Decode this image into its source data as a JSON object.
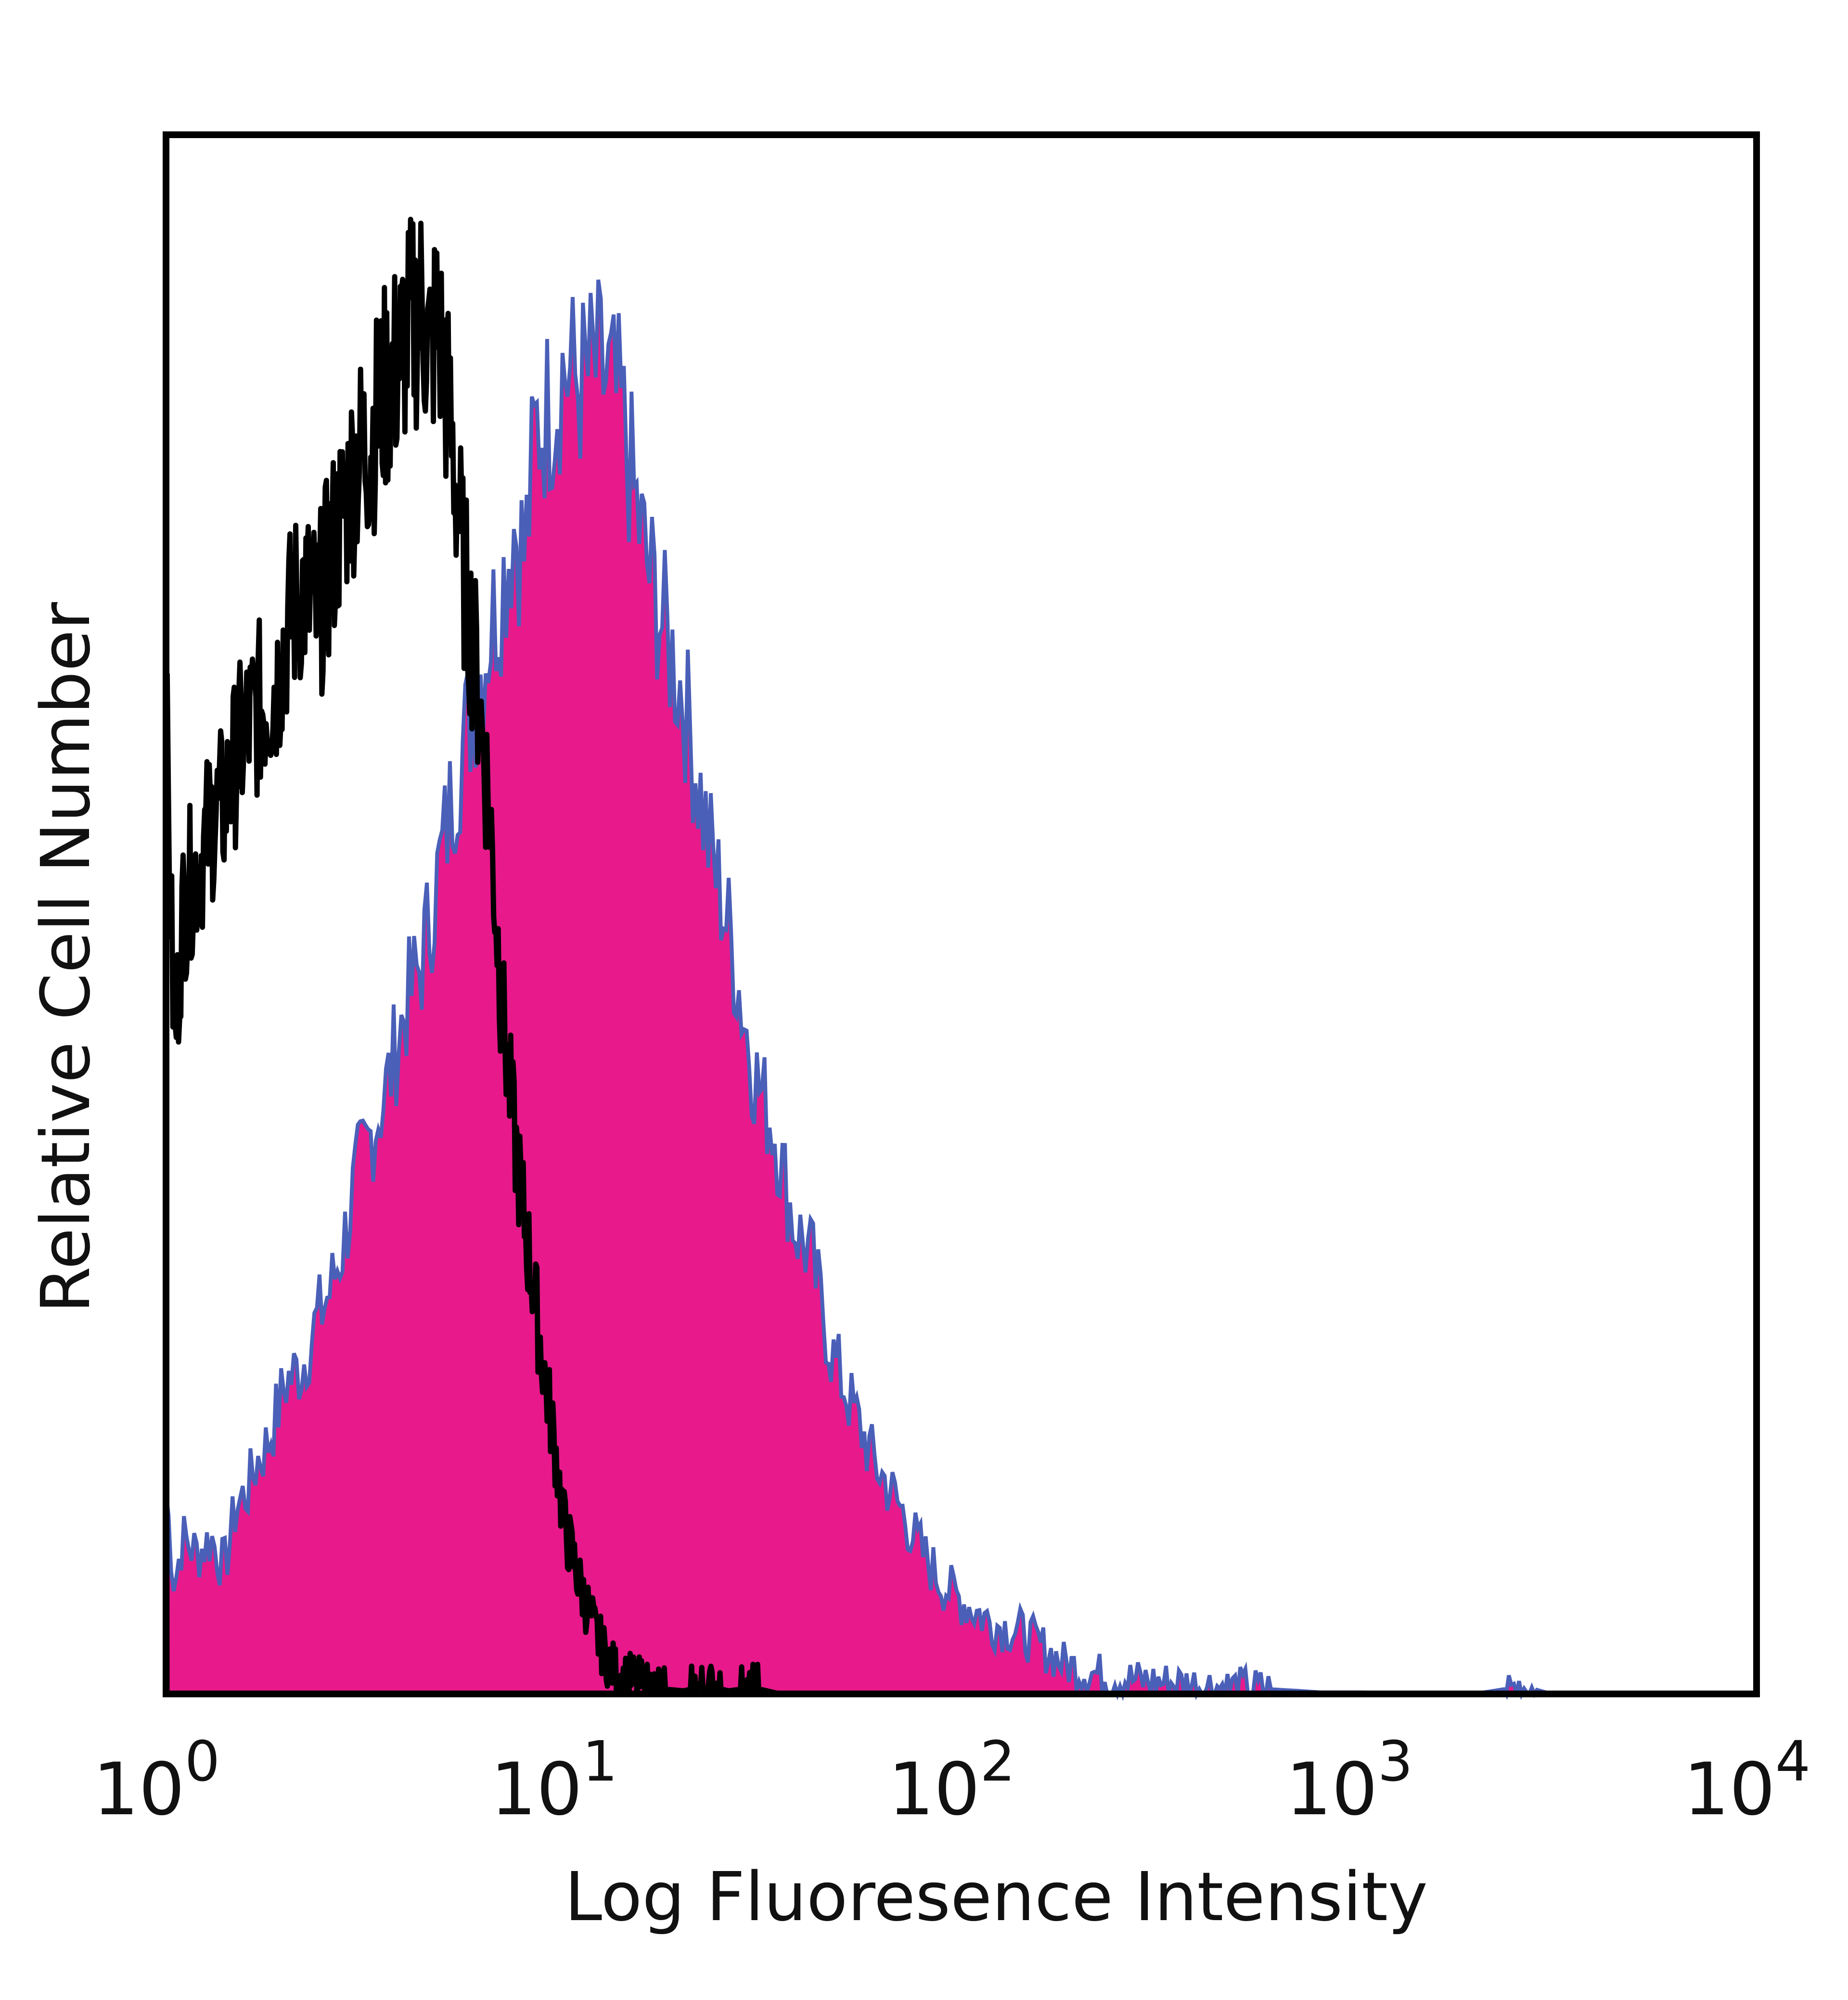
{
  "chart_data": {
    "type": "area",
    "title": "",
    "xlabel": "Log Fluoresence Intensity",
    "ylabel": "Relative Cell Number",
    "xscale": "log",
    "xlim": [
      1,
      10000
    ],
    "ylim": [
      0,
      100
    ],
    "grid": false,
    "legend": "none",
    "x_ticks": [
      {
        "base": "10",
        "exp": "0",
        "value": 1
      },
      {
        "base": "10",
        "exp": "1",
        "value": 10
      },
      {
        "base": "10",
        "exp": "2",
        "value": 100
      },
      {
        "base": "10",
        "exp": "3",
        "value": 1000
      },
      {
        "base": "10",
        "exp": "4",
        "value": 10000
      }
    ],
    "series": [
      {
        "style": "outline",
        "color": "#000000",
        "x": [
          1.0,
          1.05,
          1.1,
          1.15,
          1.2,
          1.3,
          1.4,
          1.5,
          1.6,
          1.7,
          1.8,
          1.9,
          2.0,
          2.2,
          2.4,
          2.6,
          2.8,
          3.0,
          3.2,
          3.4,
          3.6,
          3.8,
          4.0,
          4.2,
          4.4,
          4.6,
          4.8,
          5.0,
          5.3,
          5.6,
          6.0,
          6.5,
          7.0,
          7.5,
          8.0,
          8.5,
          9.0,
          9.5,
          10.0,
          11.0,
          12.0,
          13.0,
          14.0,
          15.0,
          16.0,
          18.0,
          20.0,
          23.0,
          26.0,
          30.0,
          35.0
        ],
        "y": [
          63,
          41,
          50,
          52,
          53,
          56,
          57,
          60,
          62,
          63,
          64,
          65,
          68,
          71,
          69,
          73,
          76,
          79,
          80,
          82,
          84,
          85,
          87,
          88,
          89,
          86,
          88,
          85,
          79,
          72,
          66,
          57,
          44,
          36,
          30,
          25,
          20,
          16,
          11,
          7,
          4,
          2,
          1,
          1,
          0.5,
          0.3,
          0.2,
          0.5,
          0.2,
          0.4,
          0
        ],
        "peak_x": 4.5
      },
      {
        "style": "filled",
        "color": "#e8198b",
        "edge_color": "#4a5fb8",
        "x": [
          1.0,
          1.05,
          1.1,
          1.2,
          1.3,
          1.4,
          1.5,
          1.6,
          1.7,
          1.8,
          1.9,
          2.0,
          2.2,
          2.4,
          2.6,
          2.8,
          3.0,
          3.3,
          3.6,
          4.0,
          4.4,
          4.8,
          5.2,
          5.6,
          6.0,
          6.5,
          7.0,
          7.5,
          8.0,
          8.5,
          9.0,
          9.5,
          10.0,
          11.0,
          12.0,
          13.0,
          14.0,
          15.0,
          16.0,
          18.0,
          20.0,
          23.0,
          26.0,
          30.0,
          34.0,
          38.0,
          42.0,
          47.0,
          52.0,
          60.0,
          70.0,
          80.0,
          90.0,
          100.0,
          120.0,
          140.0,
          160.0,
          180.0,
          200.0,
          250.0,
          300.0,
          400.0,
          500.0,
          600.0,
          700.0,
          800.0,
          1000.0,
          1500.0,
          2000.0,
          2600.0,
          3000.0,
          4000.0,
          10000.0
        ],
        "y": [
          13,
          7,
          10,
          9,
          10,
          8,
          12,
          13,
          15,
          16,
          18,
          20,
          21,
          24,
          26,
          29,
          33,
          36,
          39,
          44,
          47,
          52,
          57,
          61,
          64,
          68,
          71,
          75,
          73,
          81,
          82,
          83,
          85,
          84,
          85,
          84,
          82,
          77,
          73,
          68,
          64,
          55,
          49,
          40,
          36,
          30,
          28,
          22,
          19,
          15,
          12,
          9,
          7,
          6,
          4.5,
          4,
          3,
          2,
          1.5,
          1,
          0.8,
          0.6,
          0.4,
          0.3,
          0.2,
          0.1,
          0.1,
          0.05,
          0.05,
          0.5,
          0.05,
          0,
          0
        ],
        "peak_x": 11.0
      }
    ]
  }
}
